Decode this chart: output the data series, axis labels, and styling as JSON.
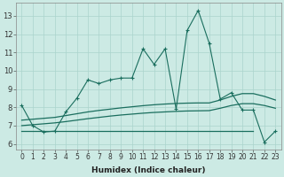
{
  "xlabel": "Humidex (Indice chaleur)",
  "x": [
    0,
    1,
    2,
    3,
    4,
    5,
    6,
    7,
    8,
    9,
    10,
    11,
    12,
    13,
    14,
    15,
    16,
    17,
    18,
    19,
    20,
    21,
    22,
    23
  ],
  "line1": [
    8.1,
    7.0,
    6.65,
    6.7,
    7.75,
    8.5,
    9.5,
    9.3,
    9.5,
    9.6,
    9.6,
    11.2,
    10.35,
    11.2,
    7.9,
    12.2,
    13.3,
    11.5,
    8.45,
    8.8,
    7.85,
    7.85,
    6.1,
    6.7
  ],
  "trend1": [
    7.3,
    7.35,
    7.4,
    7.45,
    7.55,
    7.65,
    7.75,
    7.83,
    7.9,
    7.97,
    8.03,
    8.09,
    8.14,
    8.18,
    8.21,
    8.23,
    8.24,
    8.24,
    8.4,
    8.6,
    8.75,
    8.75,
    8.6,
    8.4
  ],
  "trend2": [
    7.0,
    7.05,
    7.1,
    7.15,
    7.22,
    7.3,
    7.38,
    7.45,
    7.52,
    7.58,
    7.63,
    7.68,
    7.72,
    7.75,
    7.78,
    7.8,
    7.81,
    7.82,
    7.95,
    8.1,
    8.2,
    8.2,
    8.1,
    7.95
  ],
  "const_line_x": [
    0,
    21
  ],
  "const_line_y": [
    6.7,
    6.7
  ],
  "bg_color": "#cceae4",
  "grid_color": "#aad4cc",
  "line_color": "#1a6e5e",
  "ylim": [
    5.7,
    13.7
  ],
  "xlim": [
    -0.5,
    23.5
  ],
  "yticks": [
    6,
    7,
    8,
    9,
    10,
    11,
    12,
    13
  ],
  "xticks": [
    0,
    1,
    2,
    3,
    4,
    5,
    6,
    7,
    8,
    9,
    10,
    11,
    12,
    13,
    14,
    15,
    16,
    17,
    18,
    19,
    20,
    21,
    22,
    23
  ],
  "tick_fontsize": 5.5,
  "label_fontsize": 6.5
}
